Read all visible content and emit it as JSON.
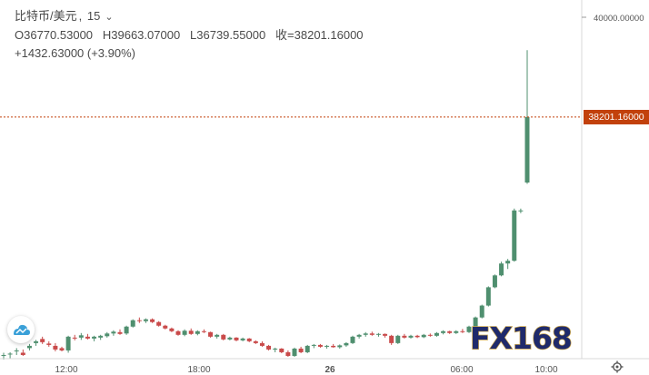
{
  "symbol": {
    "name": "比特币/美元",
    "separator": ",",
    "interval": "15",
    "open_label": "O36770.53000",
    "high_label": "H39663.07000",
    "low_label": "L36739.55000",
    "close_label": "收=38201.16000",
    "change_label": "+1432.63000 (+3.90%)"
  },
  "last_price_tag": "38201.16000",
  "watermark": "FX168",
  "colors": {
    "up": "#4f8f6f",
    "down": "#c94a4a",
    "last_price_line": "#c2410c",
    "axis_text": "#555555",
    "border": "#d9d9d9"
  },
  "icons": {
    "interval_dropdown": "chevron-down-icon",
    "settings": "gear-icon",
    "brand": "cloud-logo-icon"
  },
  "chart_data": {
    "type": "candlestick",
    "x_ticks": [
      "12:00",
      "18:00",
      "26",
      "06:00",
      "10:00"
    ],
    "y_ticks": [
      "40000.00000"
    ],
    "ylim": [
      32920,
      40760
    ],
    "last_price": 38201.16,
    "candles_approx": [
      [
        33000,
        33050,
        32900,
        33000
      ],
      [
        33010,
        33060,
        32920,
        33030
      ],
      [
        33080,
        33150,
        33000,
        33100
      ],
      [
        33050,
        33120,
        32980,
        33000
      ],
      [
        33150,
        33240,
        33100,
        33200
      ],
      [
        33260,
        33330,
        33200,
        33300
      ],
      [
        33350,
        33400,
        33240,
        33280
      ],
      [
        33250,
        33300,
        33180,
        33220
      ],
      [
        33200,
        33260,
        33080,
        33120
      ],
      [
        33150,
        33180,
        33080,
        33100
      ],
      [
        33100,
        33420,
        33050,
        33400
      ],
      [
        33380,
        33440,
        33320,
        33360
      ],
      [
        33380,
        33480,
        33330,
        33430
      ],
      [
        33400,
        33460,
        33340,
        33360
      ],
      [
        33360,
        33420,
        33300,
        33400
      ],
      [
        33380,
        33440,
        33330,
        33420
      ],
      [
        33410,
        33500,
        33380,
        33470
      ],
      [
        33470,
        33540,
        33420,
        33510
      ],
      [
        33500,
        33560,
        33440,
        33460
      ],
      [
        33470,
        33640,
        33440,
        33620
      ],
      [
        33620,
        33780,
        33600,
        33760
      ],
      [
        33760,
        33820,
        33700,
        33740
      ],
      [
        33740,
        33800,
        33700,
        33780
      ],
      [
        33780,
        33800,
        33700,
        33720
      ],
      [
        33720,
        33740,
        33620,
        33640
      ],
      [
        33640,
        33660,
        33560,
        33580
      ],
      [
        33580,
        33600,
        33500,
        33520
      ],
      [
        33520,
        33540,
        33420,
        33440
      ],
      [
        33440,
        33560,
        33410,
        33530
      ],
      [
        33530,
        33580,
        33440,
        33460
      ],
      [
        33460,
        33540,
        33430,
        33520
      ],
      [
        33520,
        33560,
        33480,
        33500
      ],
      [
        33500,
        33510,
        33380,
        33400
      ],
      [
        33400,
        33460,
        33360,
        33440
      ],
      [
        33440,
        33460,
        33320,
        33340
      ],
      [
        33340,
        33400,
        33320,
        33380
      ],
      [
        33380,
        33390,
        33300,
        33320
      ],
      [
        33320,
        33380,
        33300,
        33360
      ],
      [
        33360,
        33370,
        33280,
        33300
      ],
      [
        33300,
        33320,
        33240,
        33260
      ],
      [
        33260,
        33300,
        33180,
        33200
      ],
      [
        33200,
        33220,
        33100,
        33120
      ],
      [
        33120,
        33160,
        33060,
        33140
      ],
      [
        33140,
        33150,
        33040,
        33060
      ],
      [
        33060,
        33100,
        32960,
        32980
      ],
      [
        32980,
        33160,
        32960,
        33140
      ],
      [
        33140,
        33180,
        33040,
        33060
      ],
      [
        33060,
        33220,
        33040,
        33200
      ],
      [
        33200,
        33240,
        33150,
        33220
      ],
      [
        33220,
        33240,
        33160,
        33180
      ],
      [
        33180,
        33220,
        33140,
        33200
      ],
      [
        33200,
        33240,
        33160,
        33170
      ],
      [
        33170,
        33230,
        33140,
        33210
      ],
      [
        33210,
        33280,
        33180,
        33260
      ],
      [
        33260,
        33420,
        33240,
        33400
      ],
      [
        33400,
        33460,
        33360,
        33440
      ],
      [
        33440,
        33500,
        33400,
        33470
      ],
      [
        33470,
        33510,
        33420,
        33440
      ],
      [
        33440,
        33480,
        33400,
        33460
      ],
      [
        33460,
        33470,
        33380,
        33420
      ],
      [
        33420,
        33440,
        33220,
        33260
      ],
      [
        33260,
        33440,
        33240,
        33420
      ],
      [
        33420,
        33460,
        33360,
        33380
      ],
      [
        33380,
        33440,
        33360,
        33420
      ],
      [
        33420,
        33440,
        33370,
        33390
      ],
      [
        33390,
        33460,
        33370,
        33440
      ],
      [
        33440,
        33470,
        33400,
        33420
      ],
      [
        33420,
        33500,
        33400,
        33480
      ],
      [
        33480,
        33540,
        33450,
        33520
      ],
      [
        33520,
        33530,
        33460,
        33480
      ],
      [
        33480,
        33540,
        33460,
        33520
      ],
      [
        33520,
        33570,
        33480,
        33500
      ],
      [
        33500,
        33640,
        33480,
        33620
      ],
      [
        33620,
        33840,
        33600,
        33820
      ],
      [
        33820,
        34100,
        33800,
        34080
      ],
      [
        34080,
        34500,
        34060,
        34480
      ],
      [
        34480,
        34760,
        34460,
        34740
      ],
      [
        34740,
        35040,
        34720,
        35000
      ],
      [
        35000,
        35100,
        34880,
        35060
      ],
      [
        35060,
        36200,
        35040,
        36160
      ],
      [
        36160,
        36200,
        36100,
        36160
      ],
      [
        36770,
        39663,
        36740,
        38201
      ]
    ]
  }
}
